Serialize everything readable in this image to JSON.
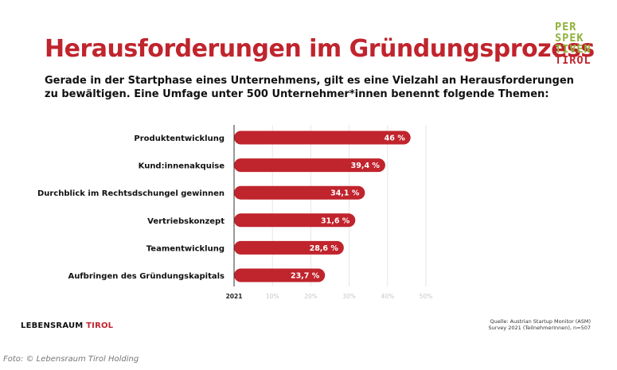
{
  "title": "Herausforderungen im Gründungsprozess",
  "subtitle_lines": [
    "Gerade in der Startphase eines Unternehmens, gilt es eine Vielzahl an Herausforderungen",
    "zu bewältigen. Eine Umfage unter 500 Unternehmer*innen benennt folgende Themen:"
  ],
  "logo": {
    "lines": [
      "PER",
      "SPEK",
      "TIVEN",
      "TIROL"
    ]
  },
  "brand": {
    "part1": "LEBENSRAUM",
    "part2": "TIROL"
  },
  "source_lines": [
    "Quelle: Austrian Startup Monitor (ASM)",
    "Survey 2021 (TeilnehmerInnen), n=507"
  ],
  "photo_credit": "Foto: © Lebensraum Tirol Holding",
  "colors": {
    "accent": "#c0242d",
    "logo_green": "#8fb23a",
    "grid": "#e6e6e6"
  },
  "chart_data": {
    "type": "bar",
    "orientation": "horizontal",
    "categories": [
      "Produktentwicklung",
      "Kund:innenakquise",
      "Durchblick im Rechtsdschungel gewinnen",
      "Vertriebskonzept",
      "Teamentwicklung",
      "Aufbringen des Gründungskapitals"
    ],
    "values": [
      46,
      39.4,
      34.1,
      31.6,
      28.6,
      23.7
    ],
    "value_labels": [
      "46 %",
      "39,4 %",
      "34,1 %",
      "31,6 %",
      "28,6 %",
      "23,7 %"
    ],
    "x_axis_first_label": "2021",
    "x_ticks": [
      10,
      20,
      30,
      40,
      50
    ],
    "x_tick_labels": [
      "10%",
      "20%",
      "30%",
      "40%",
      "50%"
    ],
    "xlim": [
      0,
      50
    ],
    "grid": true,
    "bar_color": "#c0242d"
  }
}
